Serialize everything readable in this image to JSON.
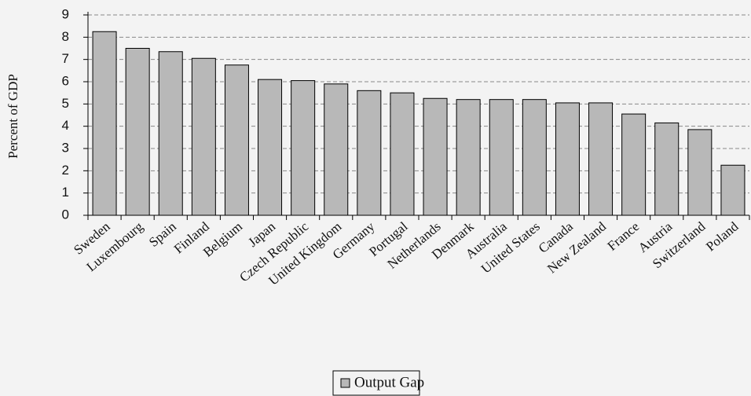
{
  "chart_data": {
    "type": "bar",
    "y_label": "Percent of GDP",
    "categories": [
      "Sweden",
      "Luxembourg",
      "Spain",
      "Finland",
      "Belgium",
      "Japan",
      "Czech Republic",
      "United Kingdom",
      "Germany",
      "Portugal",
      "Netherlands",
      "Denmark",
      "Australia",
      "United States",
      "Canada",
      "New Zealand",
      "France",
      "Austria",
      "Switzerland",
      "Poland"
    ],
    "series": [
      {
        "name": "Output Gap",
        "color": "#b8b8b8",
        "values": [
          8.25,
          7.5,
          7.35,
          7.05,
          6.75,
          6.1,
          6.05,
          5.9,
          5.6,
          5.5,
          5.25,
          5.2,
          5.2,
          5.2,
          5.05,
          5.05,
          4.55,
          4.15,
          3.85,
          2.25
        ]
      }
    ],
    "ylim": [
      0,
      9
    ],
    "yticks": [
      0,
      1,
      2,
      3,
      4,
      5,
      6,
      7,
      8,
      9
    ],
    "grid": true,
    "legend": "bottom"
  }
}
